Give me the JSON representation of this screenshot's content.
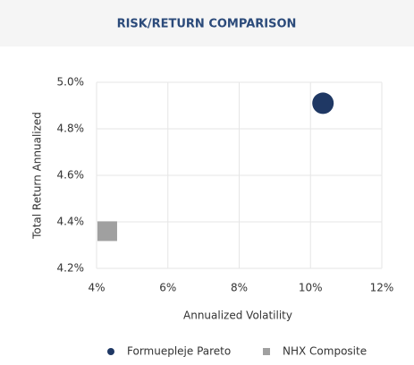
{
  "chart_data": {
    "type": "scatter",
    "title": "RISK/RETURN COMPARISON",
    "x_label": "Annualized Volatility",
    "y_label": "Total Return Annualized",
    "xlim": [
      4,
      12
    ],
    "ylim": [
      4.2,
      5.0
    ],
    "xticks": [
      {
        "value": 4,
        "label": "4%"
      },
      {
        "value": 6,
        "label": "6%"
      },
      {
        "value": 8,
        "label": "8%"
      },
      {
        "value": 10,
        "label": "10%"
      },
      {
        "value": 12,
        "label": "12%"
      }
    ],
    "yticks": [
      {
        "value": 4.2,
        "label": "4.2%"
      },
      {
        "value": 4.4,
        "label": "4.4%"
      },
      {
        "value": 4.6,
        "label": "4.6%"
      },
      {
        "value": 4.8,
        "label": "4.8%"
      },
      {
        "value": 5.0,
        "label": "5.0%"
      }
    ],
    "grid": true,
    "series": [
      {
        "name": "Formuepleje Pareto",
        "color": "#1f3864",
        "marker": "circle",
        "x": [
          10.35
        ],
        "values": [
          4.91
        ]
      },
      {
        "name": "NHX Composite",
        "color": "#a0a0a0",
        "marker": "square",
        "x": [
          4.3
        ],
        "values": [
          4.36
        ]
      }
    ]
  }
}
